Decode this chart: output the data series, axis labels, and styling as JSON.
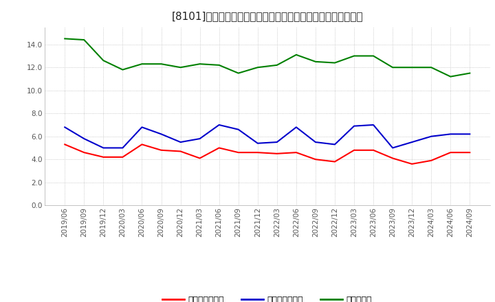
{
  "title": "[8101]　売上債権回転率、買入債務回転率、在庫回転率の推移",
  "dates": [
    "2019/06",
    "2019/09",
    "2019/12",
    "2020/03",
    "2020/06",
    "2020/09",
    "2020/12",
    "2021/03",
    "2021/06",
    "2021/09",
    "2021/12",
    "2022/03",
    "2022/06",
    "2022/09",
    "2022/12",
    "2023/03",
    "2023/06",
    "2023/09",
    "2023/12",
    "2024/03",
    "2024/06",
    "2024/09"
  ],
  "receivable_turnover": [
    5.3,
    4.6,
    4.2,
    4.2,
    5.3,
    4.8,
    4.7,
    4.1,
    5.0,
    4.6,
    4.6,
    4.5,
    4.6,
    4.0,
    3.8,
    4.8,
    4.8,
    4.1,
    3.6,
    3.9,
    4.6,
    4.6
  ],
  "payable_turnover": [
    6.8,
    5.8,
    5.0,
    5.0,
    6.8,
    6.2,
    5.5,
    5.8,
    7.0,
    6.6,
    5.4,
    5.5,
    6.8,
    5.5,
    5.3,
    6.9,
    7.0,
    5.0,
    5.5,
    6.0,
    6.2,
    6.2
  ],
  "inventory_turnover": [
    14.5,
    14.4,
    12.6,
    11.8,
    12.3,
    12.3,
    12.0,
    12.3,
    12.2,
    11.5,
    12.0,
    12.2,
    13.1,
    12.5,
    12.4,
    13.0,
    13.0,
    12.0,
    12.0,
    12.0,
    11.2,
    11.5
  ],
  "receivable_color": "#ff0000",
  "payable_color": "#0000cc",
  "inventory_color": "#008000",
  "background_color": "#ffffff",
  "plot_bg_color": "#ffffff",
  "ylim": [
    0.0,
    15.5
  ],
  "yticks": [
    0.0,
    2.0,
    4.0,
    6.0,
    8.0,
    10.0,
    12.0,
    14.0
  ],
  "legend_labels": [
    "売上債権回転率",
    "買入債務回転率",
    "在庫回転率"
  ],
  "title_fontsize": 11,
  "legend_fontsize": 9,
  "tick_fontsize": 7.5,
  "axis_label_color": "#555555",
  "grid_color": "#bbbbbb",
  "spine_color": "#aaaaaa"
}
